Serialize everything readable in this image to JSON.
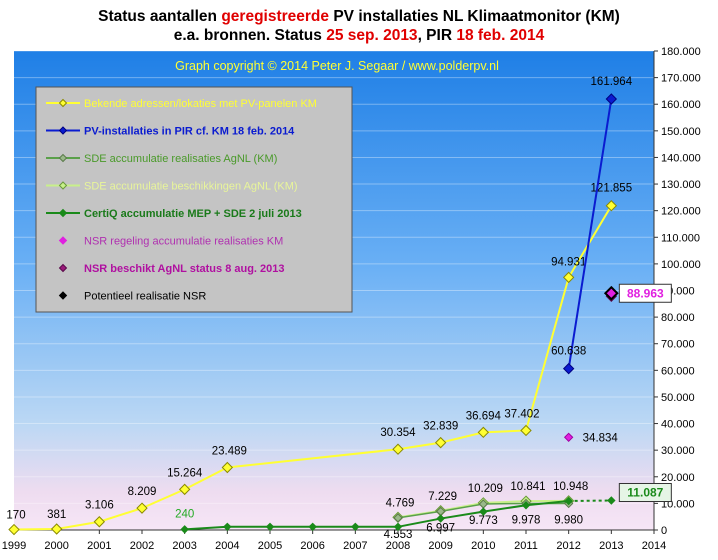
{
  "header": {
    "title_l1_a": "Status aantallen ",
    "title_l1_b": "geregistreerde",
    "title_l1_c": " PV installaties  NL Klimaatmonitor (KM)",
    "title_l2_a": "e.a. bronnen. Status ",
    "title_l2_b": "25 sep. 2013",
    "title_l2_c": ", PIR ",
    "title_l2_d": "18 feb. 2014"
  },
  "colors": {
    "yellow": "#ffff33",
    "blue": "#0a1bd0",
    "green": "#1a8a1a",
    "lightgreen": "#c8f08a",
    "magenta": "#e020e0",
    "darkmagenta": "#9a1a7a",
    "red": "#e00000"
  },
  "chart_data": {
    "type": "line",
    "copyright": "Graph copyright © 2014 Peter J. Segaar / www.polderpv.nl",
    "x_ticks": [
      "1999",
      "2000",
      "2001",
      "2002",
      "2003",
      "2004",
      "2005",
      "2006",
      "2007",
      "2008",
      "2009",
      "2010",
      "2011",
      "2012",
      "2013",
      "2014"
    ],
    "y_ticks": [
      "0",
      "10.000",
      "20.000",
      "30.000",
      "40.000",
      "50.000",
      "60.000",
      "70.000",
      "80.000",
      "90.000",
      "100.000",
      "110.000",
      "120.000",
      "130.000",
      "140.000",
      "150.000",
      "160.000",
      "170.000",
      "180.000"
    ],
    "ylim": [
      0,
      180000
    ],
    "xlim": [
      1999,
      2014
    ],
    "legend": {
      "placement": "top-left",
      "entries": [
        "Bekende adressen/lokaties met PV-panelen KM",
        "PV-installaties in PIR cf. KM 18 feb. 2014",
        "SDE accumulatie realisaties AgNL (KM)",
        "SDE accumulatie beschikkingen AgNL (KM)",
        "CertiQ accumulatie MEP + SDE 2 juli 2013",
        "NSR regeling accumulatie realisaties KM",
        "NSR beschikt AgNL status 8 aug. 2013",
        "Potentieel realisatie NSR"
      ]
    },
    "series": [
      {
        "name": "Bekende adressen/lokaties met PV-panelen KM",
        "x": [
          1999,
          2000,
          2001,
          2002,
          2003,
          2004,
          2008,
          2009,
          2010,
          2011,
          2012,
          2013
        ],
        "values": [
          170,
          381,
          3106,
          8209,
          15264,
          23489,
          30354,
          32839,
          36694,
          37402,
          94931,
          121855
        ],
        "labels": [
          "170",
          "381",
          "3.106",
          "8.209",
          "15.264",
          "23.489",
          "30.354",
          "32.839",
          "36.694",
          "37.402",
          "94.931",
          "121.855"
        ]
      },
      {
        "name": "PV-installaties in PIR cf. KM 18 feb. 2014",
        "x": [
          2012,
          2013
        ],
        "values": [
          60638,
          161964
        ],
        "labels": [
          "60.638",
          "161.964"
        ]
      },
      {
        "name": "SDE accumulatie realisaties AgNL (KM)",
        "x": [
          2008,
          2009,
          2010,
          2011,
          2012
        ],
        "values": [
          4553,
          6997,
          9773,
          9978,
          9980
        ],
        "labels": [
          "4.553",
          "6.997",
          "9.773",
          "9.978",
          "9.980"
        ]
      },
      {
        "name": "SDE accumulatie beschikkingen AgNL (KM)",
        "x": [
          2008,
          2009,
          2010,
          2011,
          2012
        ],
        "values": [
          4769,
          7229,
          10209,
          10841,
          10948
        ],
        "labels": [
          "4.769",
          "7.229",
          "10.209",
          "10.841",
          "10.948"
        ]
      },
      {
        "name": "CertiQ accumulatie MEP + SDE 2 juli 2013",
        "x": [
          2003,
          2004,
          2005,
          2006,
          2007,
          2008,
          2009,
          2010,
          2011,
          2012
        ],
        "values": [
          240,
          1200,
          1200,
          1200,
          1200,
          1200,
          4300,
          6900,
          9300,
          10900
        ],
        "labels": [
          "240",
          "",
          "",
          "",
          "",
          "",
          "",
          "",
          "",
          ""
        ],
        "extension": {
          "x": [
            2012,
            2013
          ],
          "values": [
            10900,
            11087
          ],
          "label": "11.087"
        }
      },
      {
        "name": "NSR regeling accumulatie realisaties KM",
        "x": [
          2012
        ],
        "values": [
          34834
        ],
        "labels": [
          "34.834"
        ]
      },
      {
        "name": "NSR beschikt AgNL status 8 aug. 2013",
        "x": [
          2013
        ],
        "values": [
          88963
        ],
        "labels": [
          "88.963"
        ]
      },
      {
        "name": "Potentieel realisatie NSR",
        "x": [
          2013
        ],
        "values": [
          88963
        ],
        "labels": [
          ""
        ]
      }
    ]
  }
}
